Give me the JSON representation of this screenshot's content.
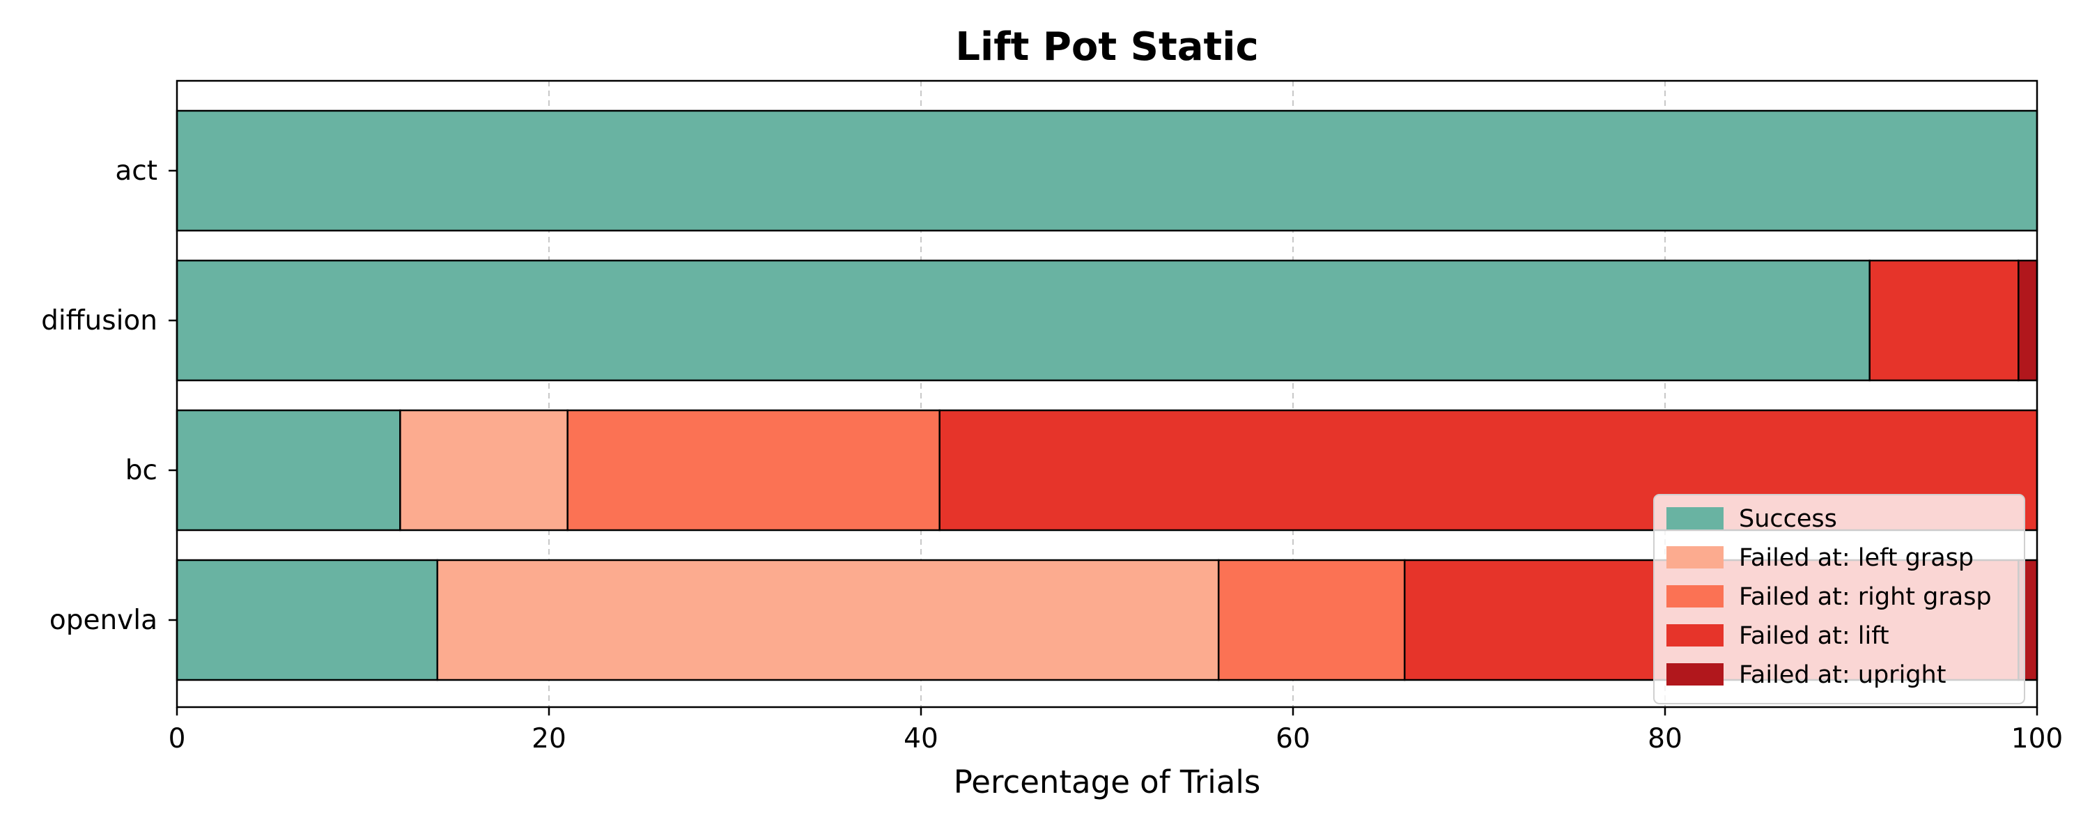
{
  "chart_data": {
    "type": "bar",
    "orientation": "horizontal",
    "stacked": true,
    "title": "Lift Pot Static",
    "xlabel": "Percentage of Trials",
    "ylabel": "",
    "xlim": [
      0,
      100
    ],
    "xticks": [
      0,
      20,
      40,
      60,
      80,
      100
    ],
    "grid": "vertical dashed",
    "legend_position": "lower-right",
    "categories": [
      "act",
      "diffusion",
      "bc",
      "openvla"
    ],
    "series": [
      {
        "name": "Success",
        "color": "#69b3a2",
        "values": [
          100,
          91,
          12,
          14
        ]
      },
      {
        "name": "Failed at: left grasp",
        "color": "#fcab8f",
        "values": [
          0,
          0,
          9,
          42
        ]
      },
      {
        "name": "Failed at: right grasp",
        "color": "#fb7254",
        "values": [
          0,
          0,
          20,
          10
        ]
      },
      {
        "name": "Failed at: lift",
        "color": "#e6342a",
        "values": [
          0,
          8,
          59,
          33
        ]
      },
      {
        "name": "Failed at: upright",
        "color": "#b1171c",
        "values": [
          0,
          1,
          0,
          1
        ]
      }
    ]
  }
}
